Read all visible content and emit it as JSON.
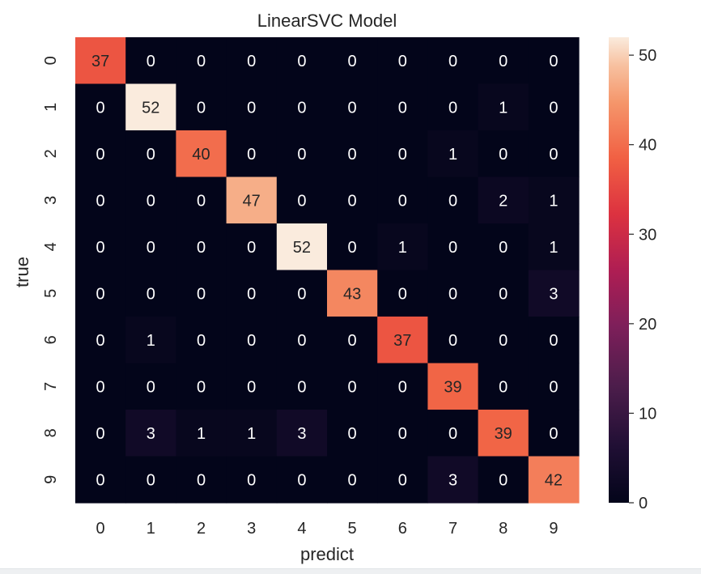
{
  "chart_data": {
    "type": "heatmap",
    "title": "LinearSVC Model",
    "xlabel": "predict",
    "ylabel": "true",
    "x_ticks": [
      "0",
      "1",
      "2",
      "3",
      "4",
      "5",
      "6",
      "7",
      "8",
      "9"
    ],
    "y_ticks": [
      "0",
      "1",
      "2",
      "3",
      "4",
      "5",
      "6",
      "7",
      "8",
      "9"
    ],
    "matrix": [
      [
        37,
        0,
        0,
        0,
        0,
        0,
        0,
        0,
        0,
        0
      ],
      [
        0,
        52,
        0,
        0,
        0,
        0,
        0,
        0,
        1,
        0
      ],
      [
        0,
        0,
        40,
        0,
        0,
        0,
        0,
        1,
        0,
        0
      ],
      [
        0,
        0,
        0,
        47,
        0,
        0,
        0,
        0,
        2,
        1
      ],
      [
        0,
        0,
        0,
        0,
        52,
        0,
        1,
        0,
        0,
        1
      ],
      [
        0,
        0,
        0,
        0,
        0,
        43,
        0,
        0,
        0,
        3
      ],
      [
        0,
        1,
        0,
        0,
        0,
        0,
        37,
        0,
        0,
        0
      ],
      [
        0,
        0,
        0,
        0,
        0,
        0,
        0,
        39,
        0,
        0
      ],
      [
        0,
        3,
        1,
        1,
        3,
        0,
        0,
        0,
        39,
        0
      ],
      [
        0,
        0,
        0,
        0,
        0,
        0,
        0,
        3,
        0,
        42
      ]
    ],
    "vmin": 0,
    "vmax": 52,
    "colormap": "rocket",
    "colorbar_ticks": [
      0,
      10,
      20,
      30,
      40,
      50
    ],
    "annotations": true,
    "grid": false
  },
  "colors": {
    "background": "#ffffff",
    "annotation_dark_text": "#262626",
    "annotation_light_text": "#ffffff",
    "axis_text": "#262626"
  }
}
